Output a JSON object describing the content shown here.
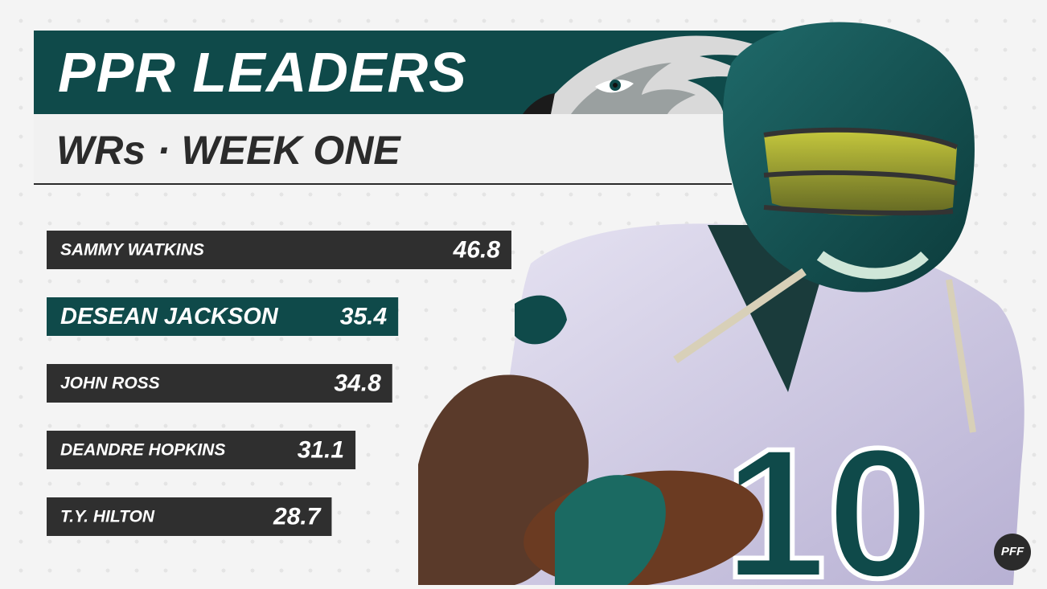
{
  "header": {
    "title": "PPR LEADERS",
    "subtitle": "WRs · WEEK ONE"
  },
  "colors": {
    "teal": "#0f4a4a",
    "dark": "#2f2f2f",
    "background": "#f4f4f4",
    "text_light": "#ffffff"
  },
  "icons": {
    "logo": "eagle-head-logo",
    "player": "football-player-photo",
    "brand": "pff-logo"
  },
  "brand": {
    "mark": "PFF"
  },
  "chart_data": {
    "type": "bar",
    "orientation": "horizontal",
    "title": "PPR LEADERS",
    "subtitle": "WRs · WEEK ONE",
    "categories": [
      "SAMMY WATKINS",
      "DESEAN JACKSON",
      "JOHN ROSS",
      "DEANDRE HOPKINS",
      "T.Y. HILTON"
    ],
    "values": [
      46.8,
      35.4,
      34.8,
      31.1,
      28.7
    ],
    "value_labels": [
      "46.8",
      "35.4",
      "34.8",
      "31.1",
      "28.7"
    ],
    "highlighted_index": 1,
    "colors": [
      "#2f2f2f",
      "#0f4a4a",
      "#2f2f2f",
      "#2f2f2f",
      "#2f2f2f"
    ],
    "grid": false,
    "xlabel": "",
    "ylabel": ""
  }
}
